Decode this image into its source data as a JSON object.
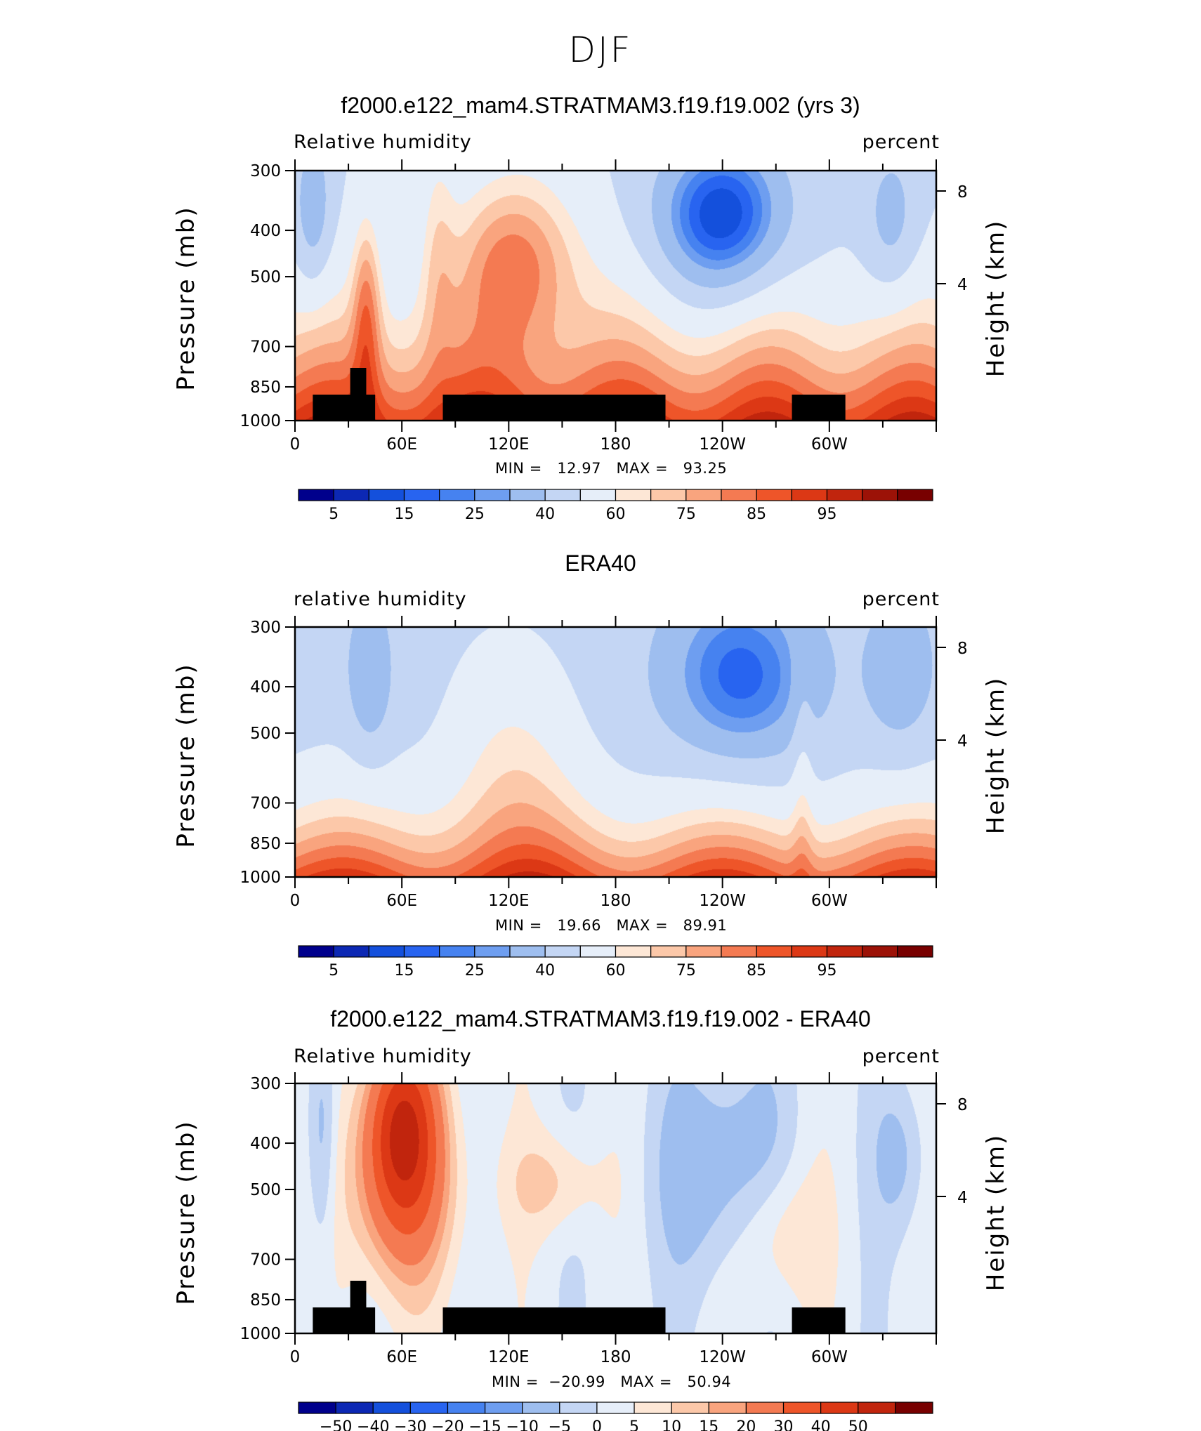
{
  "title": "DJF",
  "panels": [
    {
      "title": "f2000.e122_mam4.STRATMAM3.f19.f19.002 (yrs 3)",
      "left_label": "Relative humidity",
      "right_label": "percent",
      "min_text": "MIN =   12.97   MAX =   93.25",
      "colorbar_labels": [
        "5",
        "15",
        "25",
        "40",
        "60",
        "75",
        "85",
        "95"
      ],
      "kind": "model"
    },
    {
      "title": "ERA40",
      "left_label": "relative humidity",
      "right_label": "percent",
      "min_text": "MIN =   19.66   MAX =   89.91",
      "colorbar_labels": [
        "5",
        "15",
        "25",
        "40",
        "60",
        "75",
        "85",
        "95"
      ],
      "kind": "obs"
    },
    {
      "title": "f2000.e122_mam4.STRATMAM3.f19.f19.002 - ERA40",
      "left_label": "Relative humidity",
      "right_label": "percent",
      "min_text": "MIN =  −20.99   MAX =   50.94",
      "colorbar_labels": [
        "−50",
        "−40",
        "−30",
        "−20",
        "−15",
        "−10",
        "−5",
        "0",
        "5",
        "10",
        "15",
        "20",
        "30",
        "40",
        "50"
      ],
      "kind": "diff"
    }
  ],
  "axes": {
    "ylabel": "Pressure (mb)",
    "ylabel_right": "Height (km)",
    "pressure_ticks": [
      "300",
      "400",
      "500",
      "700",
      "850",
      "1000"
    ],
    "height_ticks": [
      "8",
      "4"
    ],
    "lon_ticks": [
      "0",
      "60E",
      "120E",
      "180",
      "120W",
      "60W"
    ]
  },
  "colors": {
    "abs_scale": [
      "#00008c",
      "#0c28b4",
      "#1450dc",
      "#2864f0",
      "#4682f0",
      "#6e9ef0",
      "#9ebeef",
      "#c4d6f4",
      "#e6eef9",
      "#fde7d6",
      "#fcc8a9",
      "#f9a47e",
      "#f47a52",
      "#ee5529",
      "#dc3815",
      "#c1250d",
      "#9c1207",
      "#780000"
    ],
    "diff_scale": [
      "#00008c",
      "#0c28b4",
      "#1450dc",
      "#2864f0",
      "#4682f0",
      "#6e9ef0",
      "#9ebeef",
      "#c4d6f4",
      "#e6eef9",
      "#fde7d6",
      "#fcc8a9",
      "#f9a47e",
      "#f47a52",
      "#ee5529",
      "#dc3815",
      "#c1250d",
      "#780000"
    ],
    "land": "#000000"
  },
  "chart_data": [
    {
      "type": "heatmap",
      "title": "f2000.e122_mam4.STRATMAM3.f19.f19.002 (yrs 3)",
      "subtitle": "Relative humidity",
      "units": "percent",
      "xlabel": "",
      "ylabel": "Pressure (mb)",
      "ylabel_right": "Height (km)",
      "x": "longitude 0-360",
      "y": "pressure 300-1000 mb (log)",
      "min": 12.97,
      "max": 93.25,
      "levels": [
        5,
        10,
        15,
        20,
        25,
        30,
        40,
        50,
        60,
        65,
        70,
        75,
        80,
        85,
        90,
        95
      ]
    },
    {
      "type": "heatmap",
      "title": "ERA40",
      "subtitle": "relative humidity",
      "units": "percent",
      "min": 19.66,
      "max": 89.91,
      "levels": [
        5,
        10,
        15,
        20,
        25,
        30,
        40,
        50,
        60,
        65,
        70,
        75,
        80,
        85,
        90,
        95
      ]
    },
    {
      "type": "heatmap",
      "title": "f2000.e122_mam4.STRATMAM3.f19.f19.002 - ERA40",
      "subtitle": "Relative humidity",
      "units": "percent",
      "min": -20.99,
      "max": 50.94,
      "levels": [
        -50,
        -40,
        -30,
        -20,
        -15,
        -10,
        -5,
        0,
        5,
        10,
        15,
        20,
        30,
        40,
        50
      ]
    }
  ]
}
